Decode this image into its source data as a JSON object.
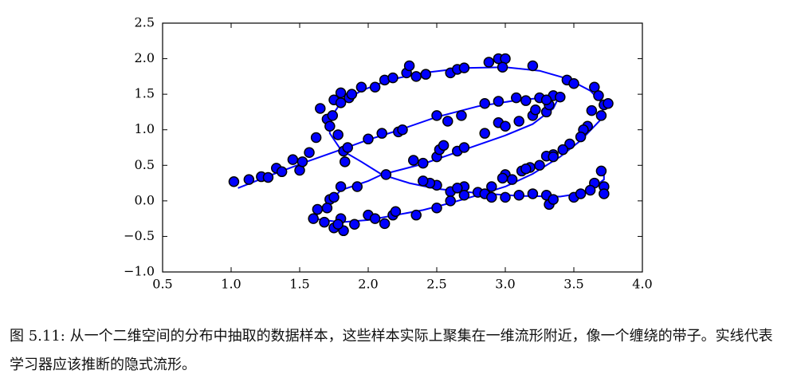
{
  "chart_data": {
    "type": "scatter",
    "xlim": [
      0.5,
      4.0
    ],
    "ylim": [
      -1.0,
      2.5
    ],
    "xticks": [
      0.5,
      {
        "value": 1,
        "label": "1.0"
      },
      1.5,
      {
        "value": 2,
        "label": "2.0"
      },
      2.5,
      {
        "value": 3,
        "label": "3.0"
      },
      3.5,
      {
        "value": 4,
        "label": "4.0"
      }
    ],
    "yticks": [
      {
        "value": -1,
        "label": "−1.0"
      },
      {
        "value": -0.5,
        "label": "−0.5"
      },
      {
        "value": 0,
        "label": "0.0"
      },
      0.5,
      {
        "value": 1,
        "label": "1.0"
      },
      1.5,
      {
        "value": 2,
        "label": "2.0"
      },
      2.5
    ],
    "scatter": {
      "color": "#0000ff",
      "x": [
        1.02,
        1.13,
        1.22,
        1.27,
        1.33,
        1.37,
        1.45,
        1.5,
        1.52,
        1.57,
        1.62,
        1.65,
        1.7,
        1.72,
        1.74,
        1.75,
        1.78,
        1.8,
        1.8,
        1.82,
        1.85,
        1.86,
        1.83,
        1.88,
        1.95,
        2.0,
        2.05,
        2.12,
        2.18,
        2.28,
        2.3,
        2.35,
        2.42,
        2.6,
        2.65,
        2.7,
        2.88,
        2.95,
        3.0,
        2.98,
        3.2,
        3.45,
        3.5,
        3.65,
        3.68,
        3.72,
        3.75,
        3.7,
        3.63,
        3.6,
        3.57,
        3.55,
        3.47,
        3.42,
        3.35,
        3.3,
        3.18,
        3.12,
        3.0,
        2.98,
        2.7,
        2.5,
        2.45,
        2.4,
        2.6,
        2.65,
        2.8,
        2.85,
        2.9,
        3.0,
        3.1,
        3.2,
        3.3,
        3.32,
        3.35,
        3.5,
        3.55,
        3.65,
        3.72,
        3.72,
        3.7,
        3.62,
        2.13,
        2.33,
        2.4,
        2.5,
        2.52,
        2.55,
        2.65,
        2.7,
        2.85,
        2.95,
        3.0,
        3.1,
        3.2,
        3.22,
        3.3,
        3.32,
        3.35,
        3.4,
        2.1,
        2.22,
        2.25,
        2.5,
        2.58,
        2.68,
        2.85,
        2.95,
        3.08,
        3.15,
        3.25,
        3.3,
        1.6,
        1.63,
        1.68,
        1.75,
        1.8,
        1.82,
        1.78,
        1.9,
        2.0,
        2.05,
        2.12,
        2.18,
        2.2,
        2.35,
        2.5,
        2.6,
        2.7,
        2.9,
        3.05,
        3.15,
        3.25,
        3.35,
        1.72,
        1.75,
        1.8,
        1.92,
        1.7
      ],
      "y": [
        0.27,
        0.3,
        0.34,
        0.33,
        0.46,
        0.41,
        0.58,
        0.43,
        0.55,
        0.68,
        0.89,
        1.3,
        1.15,
        1.05,
        1.2,
        1.42,
        0.93,
        1.52,
        1.38,
        0.7,
        0.75,
        1.45,
        0.55,
        1.5,
        1.6,
        0.87,
        1.6,
        1.7,
        1.73,
        1.8,
        1.9,
        1.75,
        1.78,
        1.8,
        1.85,
        1.87,
        1.95,
        2.0,
        2.0,
        1.88,
        1.9,
        1.7,
        1.65,
        1.6,
        1.48,
        1.35,
        1.37,
        1.2,
        1.27,
        1.05,
        1.0,
        0.9,
        0.8,
        0.72,
        0.65,
        0.63,
        0.47,
        0.42,
        0.37,
        0.32,
        0.2,
        0.22,
        0.25,
        0.28,
        0.13,
        0.18,
        0.12,
        0.1,
        0.05,
        0.05,
        0.08,
        0.1,
        0.08,
        -0.05,
        0.02,
        0.05,
        0.1,
        0.25,
        0.2,
        0.1,
        0.42,
        0.15,
        0.37,
        0.57,
        0.53,
        0.62,
        0.72,
        0.78,
        0.7,
        0.75,
        0.95,
        1.1,
        1.05,
        1.12,
        1.2,
        1.28,
        1.25,
        1.35,
        1.48,
        1.46,
        0.95,
        0.97,
        1.0,
        1.2,
        1.12,
        1.2,
        1.37,
        1.4,
        1.45,
        1.41,
        1.45,
        1.42,
        -0.25,
        -0.12,
        -0.3,
        -0.38,
        -0.25,
        -0.42,
        -0.33,
        -0.33,
        -0.2,
        -0.25,
        -0.32,
        -0.2,
        -0.15,
        -0.2,
        -0.1,
        0.0,
        0.08,
        0.2,
        0.3,
        0.45,
        0.5,
        0.62,
        0.02,
        0.05,
        0.2,
        0.2,
        -0.1
      ]
    },
    "curve": {
      "color": "#0000ff",
      "x": [
        1.05,
        1.3,
        1.55,
        1.8,
        2.0,
        2.2,
        2.5,
        2.8,
        3.1,
        3.35,
        null,
        1.8,
        1.72,
        1.72,
        1.8,
        1.95,
        2.15,
        2.4,
        2.7,
        3.0,
        3.25,
        3.45,
        3.62,
        3.72,
        3.7,
        3.6,
        null,
        1.8,
        1.95,
        2.1,
        2.3,
        2.5,
        2.8,
        3.1,
        3.4,
        3.6,
        3.72,
        3.72,
        null,
        2.1,
        2.4,
        2.7,
        3.0,
        3.2,
        3.35,
        3.38,
        null,
        1.6,
        1.8,
        2.0,
        2.2,
        2.4,
        2.6,
        2.8,
        3.0,
        3.2,
        3.4,
        3.55,
        3.6,
        null,
        1.6,
        1.7,
        1.8,
        2.0,
        2.1
      ],
      "y": [
        0.18,
        0.37,
        0.55,
        0.72,
        0.86,
        0.98,
        1.18,
        1.33,
        1.42,
        1.46,
        null,
        0.72,
        0.95,
        1.15,
        1.38,
        1.55,
        1.7,
        1.8,
        1.87,
        1.88,
        1.83,
        1.72,
        1.55,
        1.35,
        1.15,
        0.95,
        null,
        0.72,
        0.55,
        0.37,
        0.25,
        0.17,
        0.11,
        0.07,
        0.06,
        0.12,
        0.3,
        0.42,
        null,
        0.37,
        0.52,
        0.72,
        0.92,
        1.08,
        1.3,
        1.42,
        null,
        -0.25,
        -0.3,
        -0.27,
        -0.2,
        -0.13,
        -0.03,
        0.08,
        0.2,
        0.38,
        0.62,
        0.85,
        0.95,
        null,
        -0.25,
        -0.05,
        0.15,
        0.28,
        0.37
      ]
    }
  },
  "caption": "图 5.11: 从一个二维空间的分布中抽取的数据样本，这些样本实际上聚集在一维流形附近，像一个缠绕的带子。实线代表学习器应该推断的隐式流形。"
}
